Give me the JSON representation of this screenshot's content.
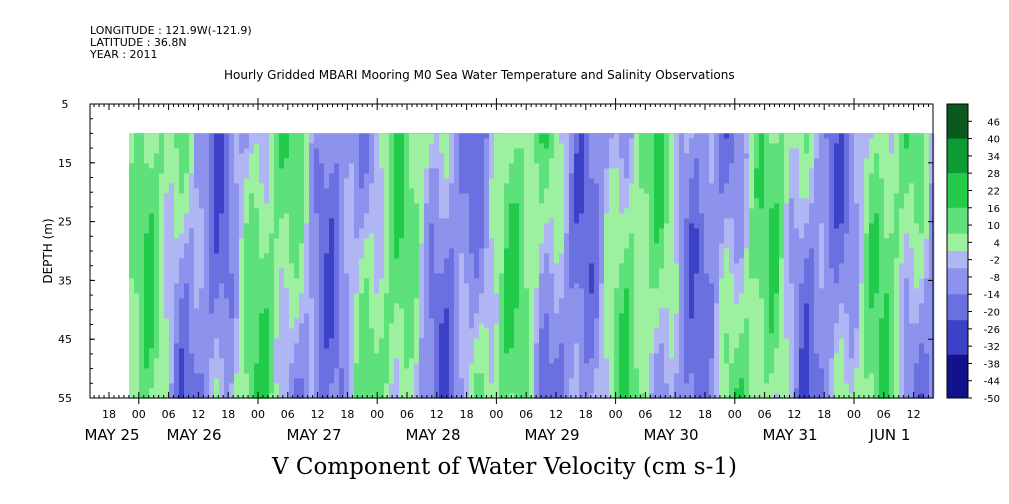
{
  "header": {
    "longitude": "LONGITUDE : 121.9W(-121.9)",
    "latitude": "LATITUDE : 36.8N",
    "year": "YEAR : 2011"
  },
  "chart_data": {
    "type": "heatmap",
    "title": "Hourly Gridded MBARI Mooring M0 Sea Water Temperature and Salinity Observations",
    "xlabel": "V Component of Water Velocity (cm s-1)",
    "ylabel": "DEPTH (m)",
    "y_ticks": [
      5,
      15,
      25,
      35,
      45,
      55
    ],
    "ylim": [
      55,
      5
    ],
    "data_depth_range": [
      10,
      55
    ],
    "x_hour_labels": [
      "18",
      "00",
      "06",
      "12",
      "18",
      "00",
      "06",
      "12",
      "18",
      "00",
      "06",
      "12",
      "18",
      "00",
      "06",
      "12",
      "18",
      "00",
      "06",
      "12",
      "18",
      "00",
      "06",
      "12",
      "18",
      "00",
      "06",
      "12"
    ],
    "x_day_labels": [
      "MAY 25",
      "MAY 26",
      "MAY 27",
      "MAY 28",
      "MAY 29",
      "MAY 30",
      "MAY 31",
      "JUN  1"
    ],
    "colorbar_labels": [
      "46",
      "40",
      "34",
      "28",
      "22",
      "16",
      "10",
      "4",
      "-2",
      "-8",
      "-14",
      "-20",
      "-26",
      "-32",
      "-38",
      "-44",
      "-50"
    ],
    "colorbar_range": [
      -50,
      52
    ],
    "colors": {
      "positive_strong": "#0a4a1a",
      "positive_mid": "#22cc4a",
      "positive_weak": "#9cf0a0",
      "negative_weak": "#b0b6f4",
      "negative_mid": "#6a70e0",
      "negative_strong": "#0a0a5a"
    }
  }
}
